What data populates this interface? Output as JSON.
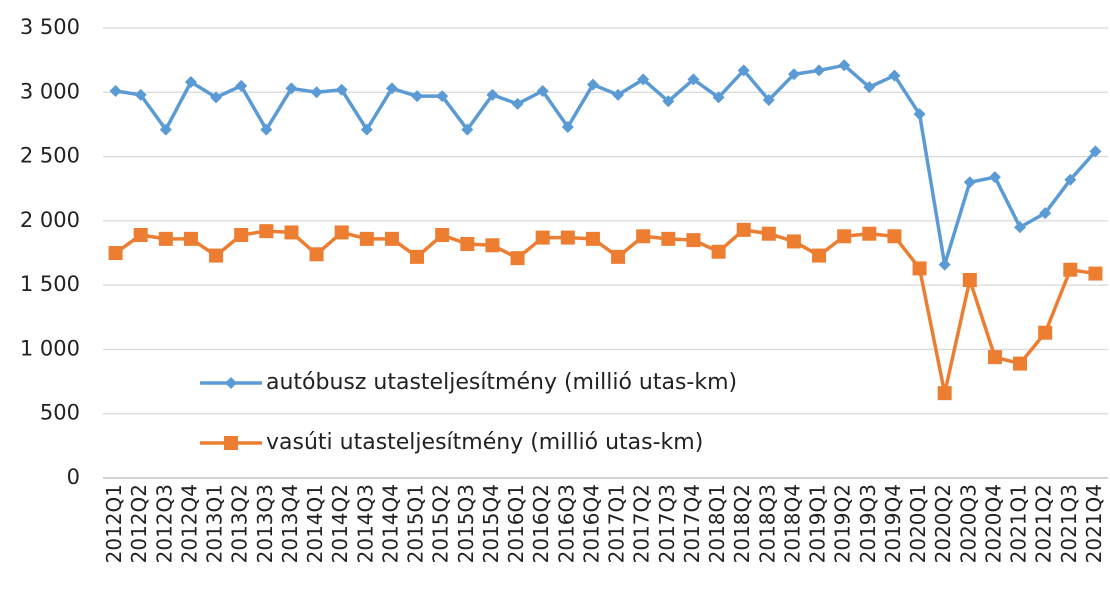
{
  "chart_data": {
    "type": "line",
    "categories": [
      "2012Q1",
      "2012Q2",
      "2012Q3",
      "2012Q4",
      "2013Q1",
      "2013Q2",
      "2013Q3",
      "2013Q4",
      "2014Q1",
      "2014Q2",
      "2014Q3",
      "2014Q4",
      "2015Q1",
      "2015Q2",
      "2015Q3",
      "2015Q4",
      "2016Q1",
      "2016Q2",
      "2016Q3",
      "2016Q4",
      "2017Q1",
      "2017Q2",
      "2017Q3",
      "2017Q4",
      "2018Q1",
      "2018Q2",
      "2018Q3",
      "2018Q4",
      "2019Q1",
      "2019Q2",
      "2019Q3",
      "2019Q4",
      "2020Q1",
      "2020Q2",
      "2020Q3",
      "2020Q4",
      "2021Q1",
      "2021Q2",
      "2021Q3",
      "2021Q4"
    ],
    "series": [
      {
        "name": "autóbusz utasteljesítmény (millió utas-km)",
        "color": "#5b9bd5",
        "marker": "diamond",
        "values": [
          3010,
          2980,
          2710,
          3080,
          2960,
          3050,
          2710,
          3030,
          3000,
          3020,
          2710,
          3030,
          2970,
          2970,
          2710,
          2980,
          2910,
          3010,
          2730,
          3060,
          2980,
          3100,
          2930,
          3100,
          2960,
          3170,
          2940,
          3140,
          3170,
          3210,
          3040,
          3130,
          2830,
          1660,
          2300,
          2340,
          1950,
          2060,
          2320,
          2540
        ]
      },
      {
        "name": "vasúti utasteljesítmény (millió utas-km)",
        "color": "#ed7d31",
        "marker": "square",
        "values": [
          1750,
          1890,
          1860,
          1860,
          1730,
          1890,
          1920,
          1910,
          1740,
          1910,
          1860,
          1860,
          1720,
          1890,
          1820,
          1810,
          1710,
          1870,
          1870,
          1860,
          1720,
          1880,
          1860,
          1850,
          1760,
          1930,
          1900,
          1840,
          1730,
          1880,
          1900,
          1880,
          1630,
          660,
          1540,
          940,
          890,
          1130,
          1620,
          1590
        ]
      }
    ],
    "ylim": [
      0,
      3500
    ],
    "yticks": [
      0,
      500,
      {
        "value": 1000,
        "label": "1 000"
      },
      {
        "value": 1500,
        "label": "1 500"
      },
      {
        "value": 2000,
        "label": "2 000"
      },
      {
        "value": 2500,
        "label": "2 500"
      },
      {
        "value": 3000,
        "label": "3 000"
      },
      {
        "value": 3500,
        "label": "3 500"
      }
    ],
    "grid": true,
    "legend": "lower left"
  }
}
